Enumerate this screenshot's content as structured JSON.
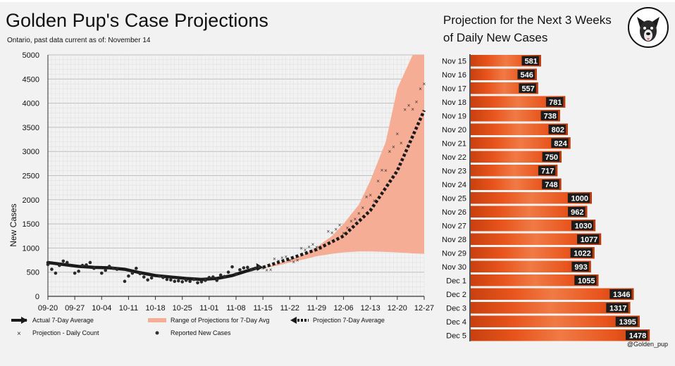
{
  "title": "Golden Pup's Case Projections",
  "subtitle": "Ontario, past data current as of: November 14",
  "right_panel": {
    "title": "Projection for the Next 3 Weeks of Daily New Cases",
    "credit": "@Golden_pup"
  },
  "legend": {
    "actual": "Actual 7-Day Average",
    "range": "Range of Projections for 7-Day Avg",
    "proj_avg": "Projection 7-Day Average",
    "proj_daily": "Projection - Daily Count",
    "reported": "Reported New Cases"
  },
  "colors": {
    "band": "#f6ad95",
    "bar": "#e8541c",
    "bar_dark": "#b93a0e",
    "line": "#1a1a1a"
  },
  "chart_data": [
    {
      "type": "line",
      "title": "Golden Pup's Case Projections",
      "xlabel": "",
      "ylabel": "New Cases",
      "xlim": [
        "09-20",
        "12-27"
      ],
      "ylim": [
        0,
        5000
      ],
      "yticks": [
        0,
        500,
        1000,
        1500,
        2000,
        2500,
        3000,
        3500,
        4000,
        4500,
        5000
      ],
      "xtick_labels": [
        "09-20",
        "09-27",
        "10-04",
        "10-11",
        "10-18",
        "10-25",
        "11-01",
        "11-08",
        "11-15",
        "11-22",
        "11-29",
        "12-06",
        "12-13",
        "12-20",
        "12-27"
      ],
      "grid": true,
      "series": [
        {
          "name": "Actual 7-Day Average",
          "style": "line",
          "x": [
            "09-20",
            "09-24",
            "09-28",
            "10-02",
            "10-06",
            "10-10",
            "10-14",
            "10-18",
            "10-22",
            "10-26",
            "10-30",
            "11-03",
            "11-07",
            "11-11",
            "11-14"
          ],
          "values": [
            700,
            660,
            620,
            600,
            590,
            560,
            490,
            430,
            400,
            370,
            350,
            370,
            430,
            530,
            600
          ]
        },
        {
          "name": "Reported New Cases",
          "style": "points",
          "x": [
            "09-20",
            "09-21",
            "09-22",
            "09-23",
            "09-24",
            "09-25",
            "09-27",
            "09-28",
            "09-29",
            "09-30",
            "10-01",
            "10-02",
            "10-04",
            "10-05",
            "10-06",
            "10-07",
            "10-08",
            "10-10",
            "10-11",
            "10-12",
            "10-13",
            "10-14",
            "10-15",
            "10-16",
            "10-17",
            "10-19",
            "10-20",
            "10-21",
            "10-22",
            "10-23",
            "10-24",
            "10-25",
            "10-26",
            "10-27",
            "10-28",
            "10-29",
            "10-30",
            "10-31",
            "11-01",
            "11-02",
            "11-03",
            "11-04",
            "11-05",
            "11-06",
            "11-07",
            "11-08",
            "11-09",
            "11-10",
            "11-11",
            "11-12",
            "11-13",
            "11-14"
          ],
          "values": [
            660,
            560,
            480,
            640,
            730,
            700,
            480,
            520,
            640,
            650,
            700,
            580,
            480,
            540,
            620,
            580,
            560,
            310,
            420,
            480,
            580,
            470,
            400,
            340,
            380,
            420,
            390,
            350,
            340,
            310,
            320,
            300,
            330,
            310,
            350,
            280,
            300,
            330,
            390,
            400,
            330,
            440,
            410,
            500,
            610,
            460,
            550,
            590,
            600,
            550,
            580,
            610
          ]
        },
        {
          "name": "Projection - Daily Count",
          "style": "x-points",
          "x": [
            "11-15",
            "11-16",
            "11-17",
            "11-18",
            "11-19",
            "11-20",
            "11-21",
            "11-22",
            "11-23",
            "11-24",
            "11-25",
            "11-26",
            "11-27",
            "11-28",
            "11-29",
            "11-30",
            "12-01",
            "12-02",
            "12-03",
            "12-04",
            "12-05",
            "12-06",
            "12-07",
            "12-08",
            "12-09",
            "12-10",
            "12-11",
            "12-12",
            "12-13",
            "12-14",
            "12-15",
            "12-16",
            "12-17",
            "12-18",
            "12-19",
            "12-20",
            "12-21",
            "12-22",
            "12-23",
            "12-24",
            "12-25",
            "12-26",
            "12-27"
          ],
          "values": [
            581,
            546,
            557,
            781,
            738,
            802,
            824,
            750,
            717,
            748,
            1000,
            962,
            1030,
            1077,
            1022,
            993,
            1055,
            1346,
            1317,
            1395,
            1478,
            1310,
            1420,
            1560,
            1600,
            1720,
            1840,
            2060,
            2100,
            1980,
            2390,
            2620,
            2610,
            3000,
            3100,
            3370,
            3180,
            3870,
            3960,
            3880,
            4030,
            4300,
            4400
          ]
        },
        {
          "name": "Projection 7-Day Average",
          "style": "dotted",
          "x": [
            "11-15",
            "11-22",
            "11-29",
            "12-06",
            "12-13",
            "12-20",
            "12-27"
          ],
          "values": [
            600,
            780,
            970,
            1250,
            1780,
            2600,
            3850
          ]
        },
        {
          "name": "Range of Projections for 7-Day Avg",
          "style": "band",
          "x": [
            "11-15",
            "11-19",
            "11-22",
            "11-26",
            "11-29",
            "12-03",
            "12-06",
            "12-10",
            "12-13",
            "12-17",
            "12-20",
            "12-24",
            "12-27"
          ],
          "low": [
            580,
            640,
            700,
            770,
            830,
            880,
            910,
            930,
            930,
            920,
            910,
            890,
            880
          ],
          "high": [
            600,
            680,
            760,
            880,
            1020,
            1250,
            1500,
            1900,
            2400,
            3200,
            4300,
            5000,
            5000
          ]
        }
      ]
    },
    {
      "type": "bar",
      "title": "Projection for the Next 3 Weeks of Daily New Cases",
      "orientation": "horizontal",
      "categories": [
        "Nov 15",
        "Nov 16",
        "Nov 17",
        "Nov 18",
        "Nov 19",
        "Nov 20",
        "Nov 21",
        "Nov 22",
        "Nov 23",
        "Nov 24",
        "Nov 25",
        "Nov 26",
        "Nov 27",
        "Nov 28",
        "Nov 29",
        "Nov 30",
        "Dec 1",
        "Dec 2",
        "Dec 3",
        "Dec 4",
        "Dec 5"
      ],
      "values": [
        581,
        546,
        557,
        781,
        738,
        802,
        824,
        750,
        717,
        748,
        1000,
        962,
        1030,
        1077,
        1022,
        993,
        1055,
        1346,
        1317,
        1395,
        1478
      ],
      "xlim": [
        0,
        1500
      ]
    }
  ]
}
